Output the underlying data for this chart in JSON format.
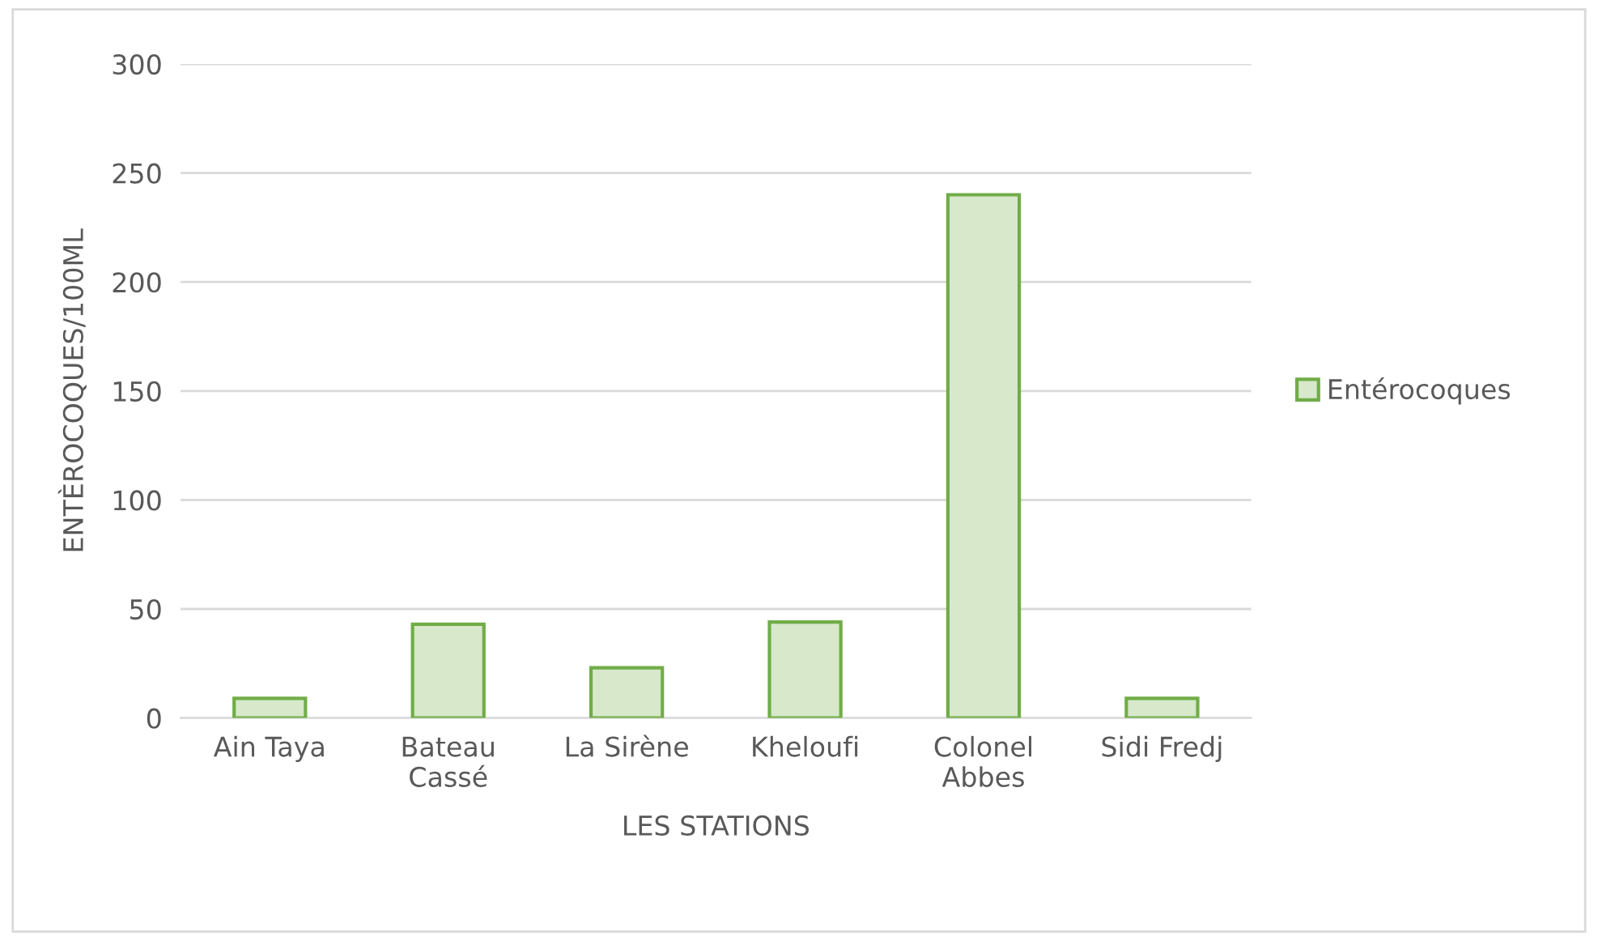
{
  "chart_data": {
    "type": "bar",
    "xlabel": "LES STATIONS",
    "ylabel": "ENTÈROCOQUES/100ML",
    "categories": [
      "Ain Taya",
      "Bateau Cassé",
      "La Sirène",
      "Kheloufi",
      "Colonel Abbes",
      "Sidi Fredj"
    ],
    "series": [
      {
        "name": "Entérocoques",
        "color": "#70ad47",
        "values": [
          9,
          43,
          23,
          44,
          240,
          9
        ]
      }
    ],
    "ylim": [
      0,
      300
    ],
    "yticks": [
      0,
      50,
      100,
      150,
      200,
      250,
      300
    ],
    "grid": "y",
    "legend": "right"
  }
}
